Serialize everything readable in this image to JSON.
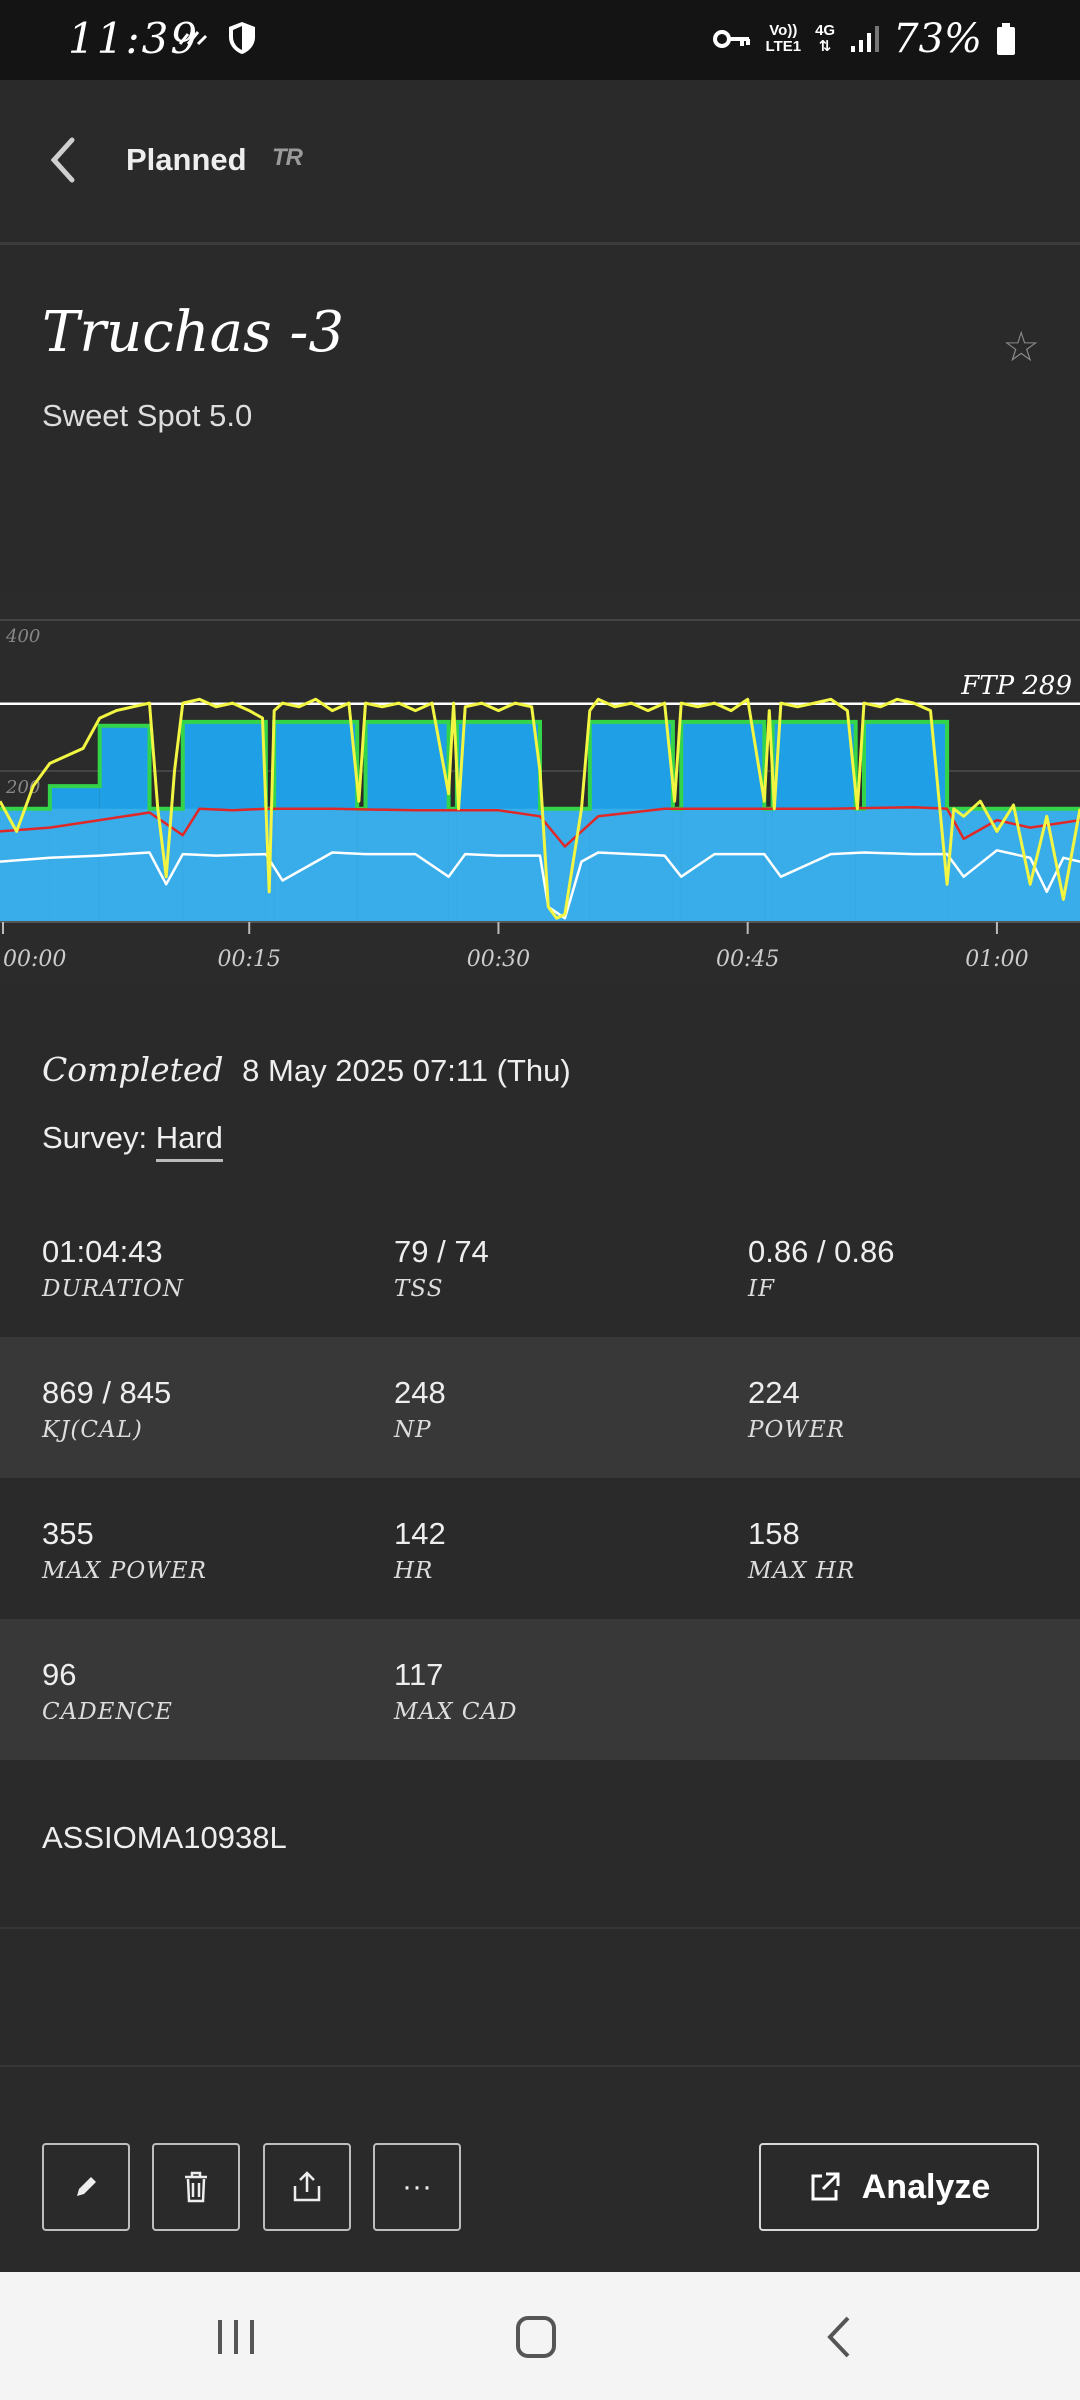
{
  "status_bar": {
    "time": "11:39",
    "battery": "73%",
    "network_top": "Vo))",
    "network_bottom": "LTE1",
    "network_gen": "4G"
  },
  "header": {
    "title": "Planned",
    "logo_text": "TR"
  },
  "workout": {
    "name": "Truchas -3",
    "subtitle": "Sweet Spot 5.0"
  },
  "chart_data": {
    "type": "area",
    "x_unit": "elapsed time",
    "ylim": [
      0,
      400
    ],
    "y_ticks": [
      "400",
      "200"
    ],
    "x_ticks": [
      "00:00",
      "00:15",
      "00:30",
      "00:45",
      "01:00"
    ],
    "x_tick_minutes": [
      0,
      15,
      30,
      45,
      60
    ],
    "x_max_minutes": 65,
    "ftp_label": "FTP 289",
    "ftp": 289,
    "planned_power": [
      {
        "start": 0,
        "end": 3,
        "watts": 150
      },
      {
        "start": 3,
        "end": 6,
        "watts": 180
      },
      {
        "start": 6,
        "end": 9,
        "watts": 260
      },
      {
        "start": 9,
        "end": 11,
        "watts": 150
      },
      {
        "start": 11,
        "end": 16,
        "watts": 265
      },
      {
        "start": 16,
        "end": 16.5,
        "watts": 150
      },
      {
        "start": 16.5,
        "end": 21.5,
        "watts": 265
      },
      {
        "start": 21.5,
        "end": 22,
        "watts": 150
      },
      {
        "start": 22,
        "end": 27,
        "watts": 265
      },
      {
        "start": 27,
        "end": 27.5,
        "watts": 150
      },
      {
        "start": 27.5,
        "end": 32.5,
        "watts": 265
      },
      {
        "start": 32.5,
        "end": 35.5,
        "watts": 150
      },
      {
        "start": 35.5,
        "end": 40.5,
        "watts": 265
      },
      {
        "start": 40.5,
        "end": 41,
        "watts": 150
      },
      {
        "start": 41,
        "end": 46,
        "watts": 265
      },
      {
        "start": 46,
        "end": 46.5,
        "watts": 150
      },
      {
        "start": 46.5,
        "end": 51.5,
        "watts": 265
      },
      {
        "start": 51.5,
        "end": 52,
        "watts": 150
      },
      {
        "start": 52,
        "end": 57,
        "watts": 265
      },
      {
        "start": 57,
        "end": 65,
        "watts": 150
      }
    ],
    "series": [
      {
        "name": "power",
        "color": "#f2f542",
        "x": [
          0,
          1,
          2,
          3,
          4,
          5,
          6,
          7,
          8,
          9,
          9.5,
          10,
          10.5,
          11,
          12,
          13,
          14,
          15,
          15.8,
          16.2,
          16.5,
          17,
          18,
          19,
          20,
          21,
          21.6,
          22,
          23,
          24,
          25,
          26,
          27,
          27.3,
          27.6,
          28,
          29,
          30,
          31,
          32,
          32.5,
          33,
          33.5,
          34,
          35,
          35.5,
          36,
          37,
          38,
          39,
          40,
          40.6,
          41,
          42,
          43,
          44,
          45,
          46,
          46.3,
          46.6,
          47,
          48,
          49,
          50,
          51,
          51.6,
          52,
          53,
          54,
          55,
          56,
          57,
          57.4,
          58,
          59,
          60,
          61,
          62,
          63,
          64,
          65
        ],
        "y": [
          160,
          120,
          180,
          210,
          220,
          230,
          270,
          280,
          285,
          290,
          150,
          60,
          200,
          290,
          295,
          285,
          290,
          280,
          270,
          40,
          280,
          290,
          285,
          295,
          280,
          290,
          160,
          290,
          285,
          290,
          280,
          290,
          170,
          290,
          150,
          285,
          290,
          280,
          290,
          285,
          200,
          20,
          5,
          10,
          150,
          280,
          295,
          285,
          290,
          280,
          290,
          160,
          290,
          285,
          290,
          280,
          295,
          160,
          280,
          150,
          290,
          285,
          290,
          295,
          280,
          150,
          290,
          285,
          295,
          290,
          280,
          50,
          150,
          140,
          160,
          120,
          155,
          50,
          140,
          30,
          150
        ]
      },
      {
        "name": "heart rate",
        "color": "#e02828",
        "x": [
          0,
          3,
          6,
          9,
          11,
          12,
          14,
          16,
          20,
          25,
          30,
          32.5,
          34,
          36,
          40,
          45,
          50,
          55,
          57,
          58,
          60,
          62,
          65
        ],
        "y": [
          120,
          125,
          135,
          145,
          115,
          150,
          148,
          150,
          150,
          148,
          148,
          140,
          100,
          140,
          150,
          150,
          150,
          152,
          150,
          110,
          135,
          125,
          135
        ]
      },
      {
        "name": "cadence",
        "color": "#ffffff",
        "x": [
          0,
          3,
          6,
          9,
          10,
          11,
          13,
          16,
          17,
          20,
          22,
          25,
          27,
          28,
          30,
          32.5,
          33,
          34,
          35,
          36,
          38,
          40,
          41,
          43,
          46,
          47,
          50,
          52,
          55,
          57,
          58,
          60,
          62,
          63,
          64,
          65
        ],
        "y": [
          80,
          85,
          88,
          92,
          50,
          90,
          88,
          90,
          55,
          92,
          90,
          90,
          60,
          90,
          88,
          88,
          20,
          5,
          80,
          92,
          90,
          88,
          60,
          90,
          90,
          60,
          90,
          92,
          90,
          90,
          60,
          95,
          85,
          40,
          85,
          80
        ]
      }
    ]
  },
  "completed": {
    "label": "Completed",
    "datetime": "8 May 2025 07:11 (Thu)"
  },
  "survey": {
    "label": "Survey:",
    "value": "Hard"
  },
  "stats": [
    [
      {
        "value": "01:04:43",
        "label": "DURATION"
      },
      {
        "value": "79 / 74",
        "label": "TSS"
      },
      {
        "value": "0.86 / 0.86",
        "label": "IF"
      }
    ],
    [
      {
        "value": "869 / 845",
        "label": "KJ(CAL)"
      },
      {
        "value": "248",
        "label": "NP"
      },
      {
        "value": "224",
        "label": "POWER"
      }
    ],
    [
      {
        "value": "355",
        "label": "MAX POWER"
      },
      {
        "value": "142",
        "label": "HR"
      },
      {
        "value": "158",
        "label": "MAX HR"
      }
    ],
    [
      {
        "value": "96",
        "label": "CADENCE"
      },
      {
        "value": "117",
        "label": "MAX CAD"
      }
    ]
  ],
  "device": "ASSIOMA10938L",
  "actions": {
    "more_label": "···",
    "analyze_label": "Analyze"
  }
}
